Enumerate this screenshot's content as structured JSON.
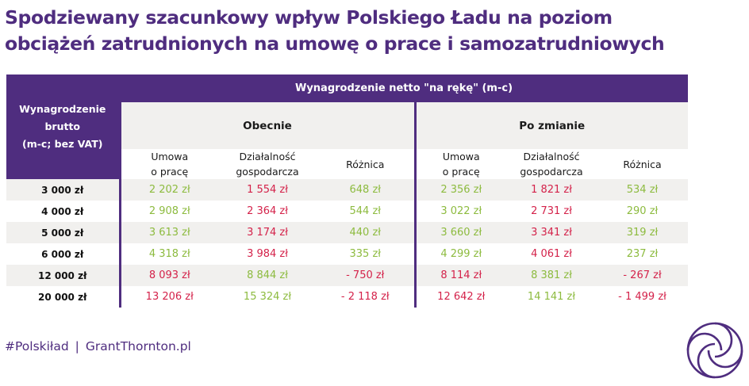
{
  "title": {
    "line1": "Spodziewany szacunkowy wpływ Polskiego Ładu na poziom",
    "line2": "obciążeń zatrudnionych na umowę o prace i samozatrudniowych"
  },
  "table": {
    "top_header": "Wynagrodzenie netto \"na rękę\" (m-c)",
    "left_header": [
      "Wynagrodzenie",
      "brutto",
      "(m-c; bez VAT)"
    ],
    "groups": [
      "Obecnie",
      "Po zmianie"
    ],
    "columns": [
      [
        "Umowa",
        "o pracę"
      ],
      [
        "Działalność",
        "gospodarcza"
      ],
      [
        "Różnica",
        ""
      ],
      [
        "Umowa",
        "o pracę"
      ],
      [
        "Działalność",
        "gospodarcza"
      ],
      [
        "Różnica",
        ""
      ]
    ],
    "rows": [
      {
        "brutto": "3 000 zł",
        "cells": [
          "2 202 zł",
          "1 554 zł",
          "648 zł",
          "2 356 zł",
          "1 821 zł",
          "534 zł"
        ],
        "colors": [
          "green",
          "red",
          "green",
          "green",
          "red",
          "green"
        ]
      },
      {
        "brutto": "4 000 zł",
        "cells": [
          "2 908 zł",
          "2 364 zł",
          "544 zł",
          "3 022 zł",
          "2 731 zł",
          "290 zł"
        ],
        "colors": [
          "green",
          "red",
          "green",
          "green",
          "red",
          "green"
        ]
      },
      {
        "brutto": "5 000 zł",
        "cells": [
          "3 613 zł",
          "3 174 zł",
          "440 zł",
          "3 660 zł",
          "3 341 zł",
          "319 zł"
        ],
        "colors": [
          "green",
          "red",
          "green",
          "green",
          "red",
          "green"
        ]
      },
      {
        "brutto": "6 000 zł",
        "cells": [
          "4 318 zł",
          "3 984 zł",
          "335 zł",
          "4 299 zł",
          "4 061 zł",
          "237 zł"
        ],
        "colors": [
          "green",
          "red",
          "green",
          "green",
          "red",
          "green"
        ]
      },
      {
        "brutto": "12 000 zł",
        "cells": [
          "8 093 zł",
          "8 844 zł",
          "- 750 zł",
          "8 114 zł",
          "8 381 zł",
          "- 267 zł"
        ],
        "colors": [
          "red",
          "green",
          "red",
          "red",
          "green",
          "red"
        ]
      },
      {
        "brutto": "20 000 zł",
        "cells": [
          "13 206 zł",
          "15 324 zł",
          "- 2 118 zł",
          "12 642 zł",
          "14 141 zł",
          "- 1 499 zł"
        ],
        "colors": [
          "red",
          "green",
          "red",
          "red",
          "green",
          "red"
        ]
      }
    ]
  },
  "footer": {
    "hashtag": "#Polskiład",
    "separator": "|",
    "site": "GrantThornton.pl"
  },
  "logo": {
    "icon": "grant-thornton-swirl-logo"
  },
  "colors": {
    "brand_purple": "#4f2d7f",
    "positive_green": "#8dbb3f",
    "negative_red": "#d4224a",
    "stripe": "#f1f0ee"
  }
}
